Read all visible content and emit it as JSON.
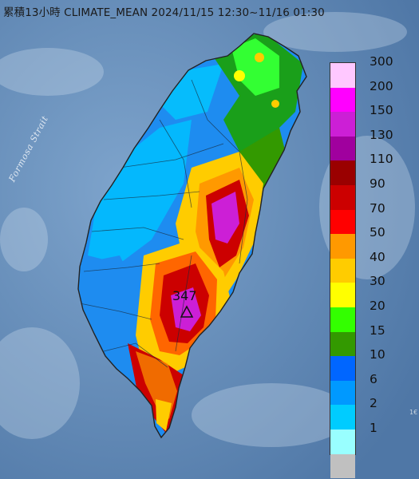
{
  "title": "累積13小時 CLIMATE_MEAN 2024/11/15 12:30~11/16 01:30",
  "strait_label": "Formosa Strait",
  "peak": {
    "value": "347",
    "marker": "triangle-peak-icon"
  },
  "corner_mark": "1€",
  "legend": [
    {
      "label": "300",
      "color": "#ffc8ff"
    },
    {
      "label": "200",
      "color": "#ff00ff"
    },
    {
      "label": "150",
      "color": "#cc1fd6"
    },
    {
      "label": "130",
      "color": "#a0009e"
    },
    {
      "label": "110",
      "color": "#9a0000"
    },
    {
      "label": "90",
      "color": "#cc0000"
    },
    {
      "label": "70",
      "color": "#ff0000"
    },
    {
      "label": "50",
      "color": "#ff9900"
    },
    {
      "label": "40",
      "color": "#ffcc00"
    },
    {
      "label": "30",
      "color": "#ffff00"
    },
    {
      "label": "20",
      "color": "#33ff00"
    },
    {
      "label": "15",
      "color": "#339900"
    },
    {
      "label": "10",
      "color": "#0066ff"
    },
    {
      "label": "6",
      "color": "#0099ff"
    },
    {
      "label": "2",
      "color": "#00ccff"
    },
    {
      "label": "1",
      "color": "#99ffff"
    },
    {
      "label": "",
      "color": "#c0c0c0"
    }
  ]
}
